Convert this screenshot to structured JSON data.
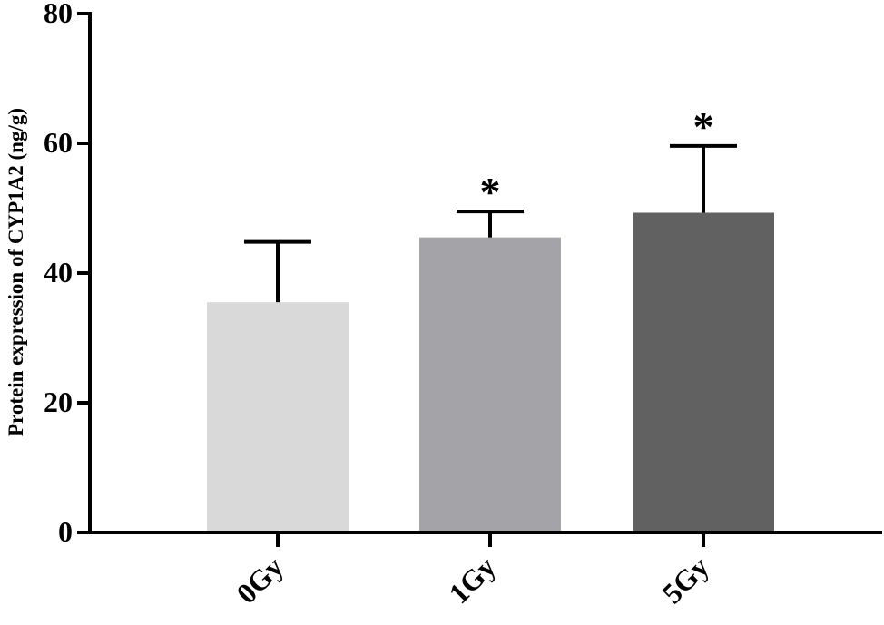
{
  "chart_data": {
    "type": "bar",
    "title": "",
    "xlabel": "",
    "ylabel": "Protein expression of CYP1A2 (ng/g)",
    "categories": [
      "0Gy",
      "1Gy",
      "5Gy"
    ],
    "values": [
      35.5,
      45.5,
      49.3
    ],
    "error_bars": [
      9.3,
      4.0,
      10.3
    ],
    "significance": [
      "",
      "*",
      "*"
    ],
    "ylim": [
      0,
      80
    ],
    "yticks": [
      "0",
      "20",
      "40",
      "60",
      "80"
    ],
    "bar_colors": [
      "#d9d9d9",
      "#a3a3a8",
      "#616161"
    ],
    "grid": false,
    "legend": "none"
  }
}
